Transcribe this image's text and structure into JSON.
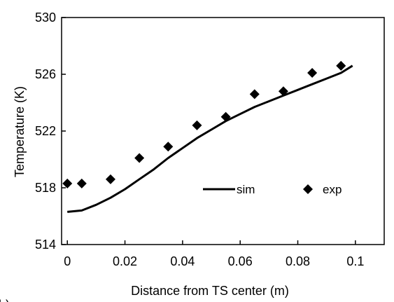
{
  "chart_data": {
    "type": "line",
    "xlabel": "Distance from TS center  (m)",
    "ylabel": "Temperature (K)",
    "xlim": [
      -0.002,
      0.11
    ],
    "ylim": [
      514,
      530
    ],
    "xticks": [
      0,
      0.02,
      0.04,
      0.06,
      0.08,
      0.1
    ],
    "xtick_labels": [
      "0",
      "0.02",
      "0.04",
      "0.06",
      "0.08",
      "0.1"
    ],
    "yticks": [
      514,
      518,
      522,
      526,
      530
    ],
    "ytick_labels": [
      "514",
      "518",
      "522",
      "526",
      "530"
    ],
    "grid": false,
    "legend_position": "right, inside plot",
    "panel_label": "b)",
    "series": [
      {
        "name": "sim",
        "type": "line",
        "color": "#000000",
        "x": [
          0,
          0.005,
          0.01,
          0.015,
          0.02,
          0.025,
          0.03,
          0.035,
          0.04,
          0.045,
          0.05,
          0.055,
          0.06,
          0.065,
          0.07,
          0.075,
          0.08,
          0.085,
          0.09,
          0.095,
          0.099
        ],
        "y": [
          516.3,
          516.4,
          516.8,
          517.3,
          517.9,
          518.6,
          519.3,
          520.1,
          520.8,
          521.5,
          522.1,
          522.7,
          523.2,
          523.7,
          524.1,
          524.5,
          524.9,
          525.3,
          525.7,
          526.1,
          526.6
        ]
      },
      {
        "name": "exp",
        "type": "scatter",
        "marker": "diamond",
        "color": "#000000",
        "x": [
          0,
          0.005,
          0.015,
          0.025,
          0.035,
          0.045,
          0.055,
          0.065,
          0.075,
          0.085,
          0.095
        ],
        "y": [
          518.3,
          518.3,
          518.6,
          520.1,
          520.9,
          522.4,
          523.0,
          524.6,
          524.8,
          526.1,
          526.6
        ]
      }
    ]
  }
}
